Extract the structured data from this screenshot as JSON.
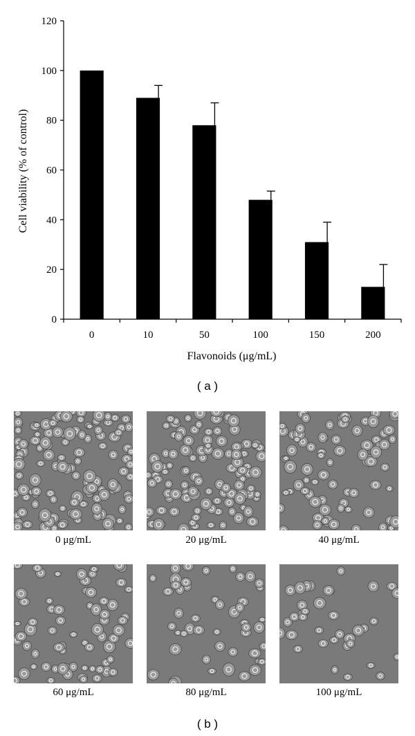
{
  "chart_data": {
    "type": "bar",
    "categories": [
      "0",
      "10",
      "50",
      "100",
      "150",
      "200"
    ],
    "values": [
      100,
      89,
      78,
      48,
      31,
      13
    ],
    "error_bars_upper": [
      100,
      94,
      87,
      51.5,
      39,
      22
    ],
    "ylim": [
      0,
      120
    ],
    "yticks": [
      "0",
      "20",
      "40",
      "60",
      "80",
      "100",
      "120"
    ],
    "xlabel": "Flavonoids (μg/mL)",
    "ylabel": "Cell viability (% of control)",
    "grid": false,
    "bar_color": "#000000"
  },
  "panel_a_label": "( a )",
  "panel_b_label": "( b )",
  "micrographs": [
    {
      "caption": "0 μg/mL",
      "density": 1.0
    },
    {
      "caption": "20 μg/mL",
      "density": 0.85
    },
    {
      "caption": "40 μg/mL",
      "density": 0.55
    },
    {
      "caption": "60 μg/mL",
      "density": 0.5
    },
    {
      "caption": "80 μg/mL",
      "density": 0.3
    },
    {
      "caption": "100 μg/mL",
      "density": 0.2
    }
  ]
}
